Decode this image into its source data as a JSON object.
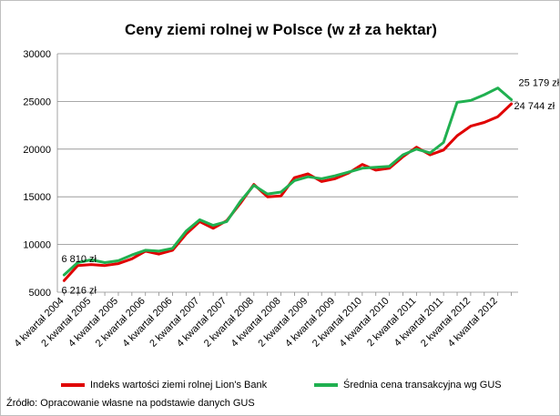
{
  "chart_data": {
    "type": "line",
    "title": "Ceny ziemi rolnej w Polsce (w zł za hektar)",
    "xlabel": "",
    "ylabel": "",
    "ylim": [
      5000,
      30000
    ],
    "yticks": [
      5000,
      10000,
      15000,
      20000,
      25000,
      30000
    ],
    "yticklabels": [
      "5000",
      "10000",
      "15000",
      "20000",
      "25000",
      "30000"
    ],
    "grid": "horizontal",
    "legend_position": "bottom",
    "categories": [
      "4 kwartał 2004",
      "",
      "2 kwartał 2005",
      "",
      "4 kwartał 2005",
      "",
      "2 kwartał 2006",
      "",
      "4 kwartał 2006",
      "",
      "2 kwartał 2007",
      "",
      "4 kwartał 2007",
      "",
      "2 kwartał 2008",
      "",
      "4 kwartał 2008",
      "",
      "2 kwartał 2009",
      "",
      "4 kwartał 2009",
      "",
      "2 kwartał 2010",
      "",
      "4 kwartał 2010",
      "",
      "2 kwartał 2011",
      "",
      "4 kwartał 2011",
      "",
      "2 kwartał 2012",
      "",
      "4 kwartał 2012",
      ""
    ],
    "series": [
      {
        "name": "Indeks wartości ziemi rolnej Lion's Bank",
        "color": "#e00000",
        "values": [
          6216,
          7800,
          7900,
          7800,
          8000,
          8500,
          9300,
          9000,
          9400,
          11100,
          12400,
          11700,
          12500,
          14300,
          16300,
          15000,
          15100,
          17000,
          17400,
          16600,
          16900,
          17500,
          18400,
          17800,
          18000,
          19200,
          20200,
          19400,
          19900,
          21400,
          22400,
          22800,
          23400,
          24744
        ]
      },
      {
        "name": "Średnia cena transakcyjna wg GUS",
        "color": "#20b050",
        "values": [
          6810,
          8100,
          8400,
          8100,
          8300,
          8900,
          9400,
          9300,
          9600,
          11400,
          12600,
          12000,
          12400,
          14500,
          16200,
          15300,
          15500,
          16700,
          17100,
          16900,
          17200,
          17600,
          18000,
          18100,
          18200,
          19400,
          20000,
          19600,
          20700,
          24900,
          25100,
          25700,
          26400,
          25179
        ]
      }
    ],
    "annotations": [
      {
        "text": "6 810 zł",
        "series": 1,
        "index": 0,
        "pos": "above"
      },
      {
        "text": "6 216 zł",
        "series": 0,
        "index": 0,
        "pos": "below"
      },
      {
        "text": "25 179 zł",
        "series": 1,
        "index": 33,
        "pos": "above-right"
      },
      {
        "text": "24 744 zł",
        "series": 0,
        "index": 33,
        "pos": "right"
      }
    ]
  },
  "source": "Źródło: Opracowanie własne na podstawie danych GUS"
}
